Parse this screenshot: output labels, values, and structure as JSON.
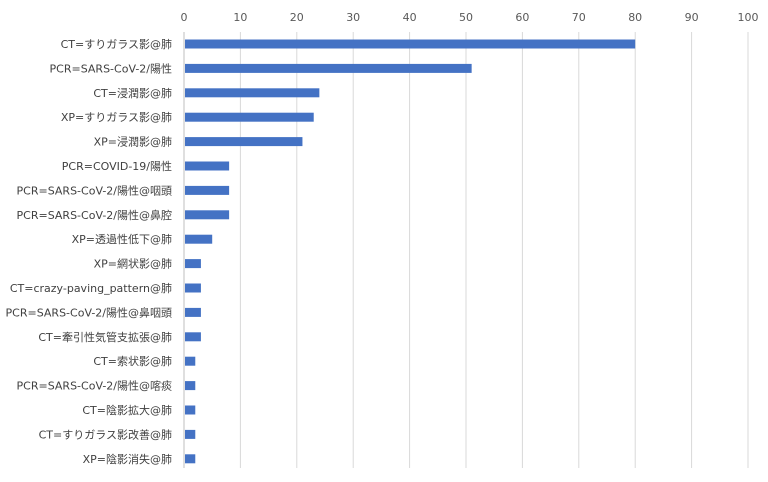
{
  "chart_data": {
    "type": "bar",
    "orientation": "horizontal",
    "title": "",
    "xlabel": "",
    "ylabel": "",
    "xlim": [
      0,
      100
    ],
    "x_ticks": [
      0,
      10,
      20,
      30,
      40,
      50,
      60,
      70,
      80,
      90,
      100
    ],
    "x_axis_position": "top",
    "grid": true,
    "legend": "none",
    "bar_color": "#4472c4",
    "categories": [
      "CT=すりガラス影@肺",
      "PCR=SARS-CoV-2/陽性",
      "CT=浸潤影@肺",
      "XP=すりガラス影@肺",
      "XP=浸潤影@肺",
      "PCR=COVID-19/陽性",
      "PCR=SARS-CoV-2/陽性@咽頭",
      "PCR=SARS-CoV-2/陽性@鼻腔",
      "XP=透過性低下@肺",
      "XP=網状影@肺",
      "CT=crazy-paving_pattern@肺",
      "PCR=SARS-CoV-2/陽性@鼻咽頭",
      "CT=牽引性気管支拡張@肺",
      "CT=索状影@肺",
      "PCR=SARS-CoV-2/陽性@喀痰",
      "CT=陰影拡大@肺",
      "CT=すりガラス影改善@肺",
      "XP=陰影消失@肺"
    ],
    "values": [
      80,
      51,
      24,
      23,
      21,
      8,
      8,
      8,
      5,
      3,
      3,
      3,
      3,
      2,
      2,
      2,
      2,
      2
    ]
  }
}
